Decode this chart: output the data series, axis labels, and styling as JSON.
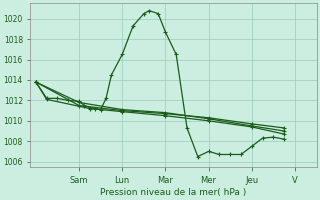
{
  "background_color": "#cceee0",
  "grid_color": "#99ccbb",
  "line_color": "#1a5c1a",
  "marker_color": "#1a5c1a",
  "ylabel": "Pression niveau de la mer( hPa )",
  "ylim": [
    1005.5,
    1021.5
  ],
  "yticks": [
    1006,
    1008,
    1010,
    1012,
    1014,
    1016,
    1018,
    1020
  ],
  "day_labels": [
    "Sam",
    "Lun",
    "Mar",
    "Mer",
    "Jeu",
    "V"
  ],
  "day_positions": [
    24,
    48,
    72,
    96,
    120,
    144
  ],
  "xlim": [
    -3,
    156
  ],
  "series_main": [
    [
      0,
      1013.8
    ],
    [
      6,
      1012.2
    ],
    [
      12,
      1012.2
    ],
    [
      18,
      1012.0
    ],
    [
      24,
      1011.9
    ],
    [
      27,
      1011.5
    ],
    [
      30,
      1011.3
    ],
    [
      33,
      1011.2
    ],
    [
      36,
      1011.1
    ],
    [
      39,
      1012.2
    ],
    [
      42,
      1014.5
    ],
    [
      48,
      1016.5
    ],
    [
      54,
      1019.3
    ],
    [
      60,
      1020.5
    ],
    [
      63,
      1020.8
    ],
    [
      68,
      1020.5
    ],
    [
      72,
      1018.7
    ],
    [
      78,
      1016.5
    ],
    [
      84,
      1009.3
    ],
    [
      90,
      1006.5
    ],
    [
      96,
      1007.0
    ],
    [
      102,
      1006.7
    ],
    [
      108,
      1006.7
    ],
    [
      114,
      1006.7
    ],
    [
      120,
      1007.5
    ],
    [
      126,
      1008.3
    ],
    [
      132,
      1008.4
    ],
    [
      138,
      1008.2
    ]
  ],
  "series_flat1": [
    [
      0,
      1013.8
    ],
    [
      6,
      1012.1
    ],
    [
      30,
      1011.2
    ],
    [
      48,
      1010.9
    ],
    [
      72,
      1010.5
    ],
    [
      96,
      1010.0
    ],
    [
      120,
      1009.4
    ],
    [
      138,
      1008.7
    ]
  ],
  "series_flat2": [
    [
      0,
      1013.8
    ],
    [
      24,
      1011.8
    ],
    [
      48,
      1011.1
    ],
    [
      72,
      1010.8
    ],
    [
      96,
      1010.2
    ],
    [
      120,
      1009.5
    ],
    [
      138,
      1009.0
    ]
  ],
  "series_flat3": [
    [
      0,
      1013.8
    ],
    [
      24,
      1011.5
    ],
    [
      48,
      1011.0
    ],
    [
      72,
      1010.7
    ],
    [
      96,
      1010.3
    ],
    [
      120,
      1009.7
    ],
    [
      138,
      1009.3
    ]
  ]
}
